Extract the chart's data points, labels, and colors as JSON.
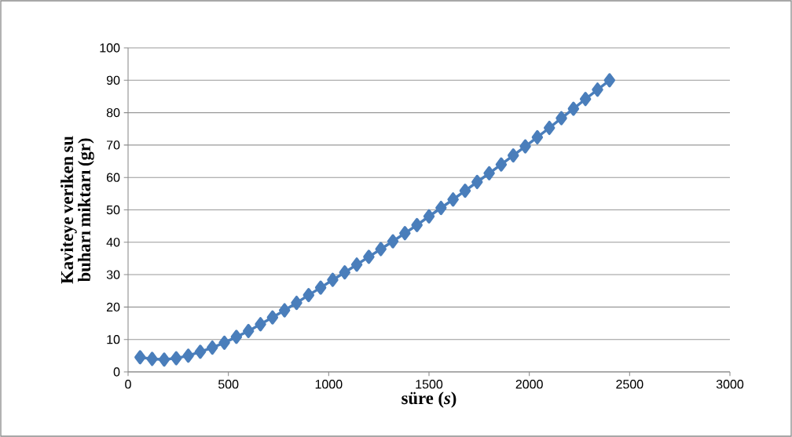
{
  "chart_data": {
    "type": "line",
    "xlabel": "süre (*s*)",
    "ylabel": "Kaviteye veriken su buharı miktarı (gr)",
    "x": [
      60,
      120,
      180,
      240,
      300,
      360,
      420,
      480,
      540,
      600,
      660,
      720,
      780,
      840,
      900,
      960,
      1020,
      1080,
      1140,
      1200,
      1260,
      1320,
      1380,
      1440,
      1500,
      1560,
      1620,
      1680,
      1740,
      1800,
      1860,
      1920,
      1980,
      2040,
      2100,
      2160,
      2220,
      2280,
      2340,
      2400
    ],
    "series": [
      {
        "color": "#4a7ebb",
        "values": [
          4.5,
          4.0,
          3.8,
          4.2,
          5.0,
          6.2,
          7.5,
          9.0,
          10.8,
          12.6,
          14.7,
          16.8,
          19.0,
          21.3,
          23.7,
          26.0,
          28.4,
          30.7,
          33.1,
          35.5,
          37.9,
          40.3,
          42.8,
          45.3,
          48.0,
          50.6,
          53.2,
          55.9,
          58.6,
          61.3,
          64.0,
          66.8,
          69.6,
          72.4,
          75.3,
          78.3,
          81.2,
          84.2,
          87.1,
          90.0
        ]
      }
    ],
    "xlim": [
      0,
      3000
    ],
    "xticks": [
      0,
      500,
      1000,
      1500,
      2000,
      2500,
      3000
    ],
    "ylim": [
      0,
      100
    ],
    "yticks": [
      0,
      10,
      20,
      30,
      40,
      50,
      60,
      70,
      80,
      90,
      100
    ],
    "grid": "y",
    "marker": "diamond",
    "line_style": "solid"
  }
}
